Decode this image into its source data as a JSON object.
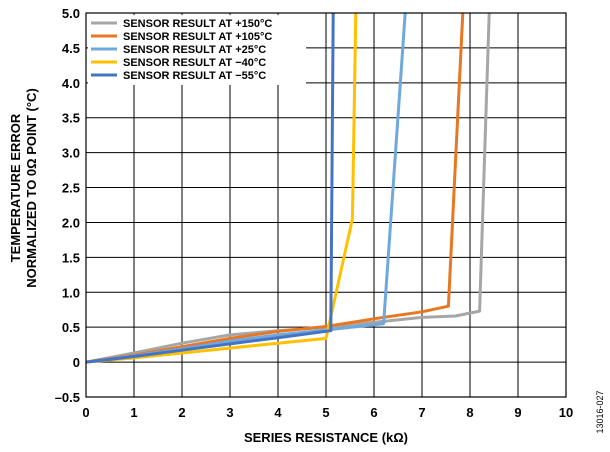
{
  "chart_data": {
    "type": "line",
    "xlabel": "SERIES RESISTANCE (kΩ)",
    "ylabel_lines": [
      "TEMPERATURE ERROR",
      "NORMALIZED TO 0Ω POINT (°C)"
    ],
    "xlim": [
      0,
      10
    ],
    "ylim": [
      -0.5,
      5.0
    ],
    "x_ticks": [
      0,
      1,
      2,
      3,
      4,
      5,
      6,
      7,
      8,
      9,
      10
    ],
    "x_tick_labels": [
      "0",
      "1",
      "2",
      "3",
      "4",
      "5",
      "6",
      "7",
      "8",
      "9",
      "10"
    ],
    "y_ticks": [
      -0.5,
      0,
      0.5,
      1.0,
      1.5,
      2.0,
      2.5,
      3.0,
      3.5,
      4.0,
      4.5,
      5.0
    ],
    "y_tick_labels": [
      "–0.5",
      "0",
      "0.5",
      "1.0",
      "1.5",
      "2.0",
      "2.5",
      "3.0",
      "3.5",
      "4.0",
      "4.5",
      "5.0"
    ],
    "grid": true,
    "legend_position": "top-left",
    "series": [
      {
        "name": "SENSOR RESULT AT +150°C",
        "color": "#a6a6a6",
        "points": [
          [
            0,
            0
          ],
          [
            1,
            0.13
          ],
          [
            2,
            0.27
          ],
          [
            3,
            0.39
          ],
          [
            4,
            0.45
          ],
          [
            5,
            0.5
          ],
          [
            6,
            0.57
          ],
          [
            7,
            0.64
          ],
          [
            7.7,
            0.66
          ],
          [
            8.2,
            0.73
          ],
          [
            8.4,
            5.0
          ]
        ]
      },
      {
        "name": "SENSOR RESULT AT +105°C",
        "color": "#e87722",
        "points": [
          [
            0,
            0
          ],
          [
            1,
            0.1
          ],
          [
            2,
            0.22
          ],
          [
            3,
            0.34
          ],
          [
            4,
            0.44
          ],
          [
            5,
            0.51
          ],
          [
            6,
            0.62
          ],
          [
            7,
            0.72
          ],
          [
            7.55,
            0.8
          ],
          [
            7.85,
            5.0
          ]
        ]
      },
      {
        "name": "SENSOR RESULT AT +25°C",
        "color": "#6fa8dc",
        "points": [
          [
            0,
            0
          ],
          [
            1,
            0.09
          ],
          [
            2,
            0.19
          ],
          [
            3,
            0.3
          ],
          [
            4,
            0.39
          ],
          [
            5,
            0.46
          ],
          [
            6.2,
            0.55
          ],
          [
            6.65,
            5.0
          ]
        ]
      },
      {
        "name": "SENSOR RESULT AT −40°C",
        "color": "#ffc000",
        "points": [
          [
            0,
            0
          ],
          [
            1,
            0.06
          ],
          [
            2,
            0.13
          ],
          [
            3,
            0.2
          ],
          [
            4,
            0.27
          ],
          [
            5,
            0.34
          ],
          [
            5.55,
            2.05
          ],
          [
            5.62,
            5.0
          ]
        ]
      },
      {
        "name": "SENSOR RESULT AT −55°C",
        "color": "#4472c4",
        "points": [
          [
            0,
            0
          ],
          [
            1,
            0.08
          ],
          [
            2,
            0.17
          ],
          [
            3,
            0.26
          ],
          [
            4,
            0.35
          ],
          [
            5.1,
            0.45
          ],
          [
            5.15,
            5.0
          ]
        ]
      }
    ]
  },
  "figure_id": "13016-027"
}
